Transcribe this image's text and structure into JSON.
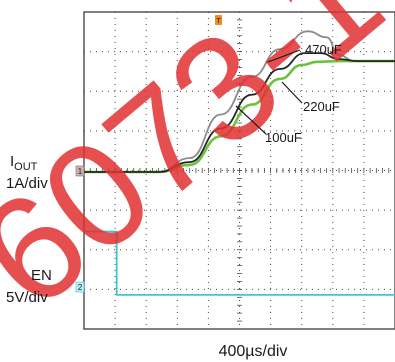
{
  "watermark": "6073-1",
  "labels": {
    "iout_main": "I",
    "iout_sub": "OUT",
    "iout_scale": "1A/div",
    "en_name": "EN",
    "en_scale": "5V/div",
    "time_scale": "400µs/div"
  },
  "markers": {
    "trigger": "T",
    "ch1": "1",
    "ch2": "2"
  },
  "colors": {
    "background": "#ffffff",
    "grid": "#4a4a4a",
    "trace_470uF": "#8c8c8c",
    "trace_220uF": "#262626",
    "trace_100uF": "#6cc23c",
    "en_trace": "#3ec6d2",
    "trigger_marker": "#f08a1e",
    "watermark": "#e23030"
  },
  "chart_data": {
    "type": "line",
    "title": "",
    "xlabel": "400µs/div",
    "ylabel": "",
    "divisions": {
      "x": 10,
      "y": 8
    },
    "series": [
      {
        "name": "470uF",
        "x_div": [
          0,
          2.4,
          3.4,
          4.4,
          5.4,
          6.3,
          7.2,
          7.8,
          8.2,
          8.7,
          9.5,
          10
        ],
        "y_div": [
          0,
          0,
          0.35,
          1.45,
          2.4,
          3.1,
          3.55,
          3.4,
          2.95,
          2.8,
          2.8,
          2.8
        ]
      },
      {
        "name": "220uF",
        "x_div": [
          0,
          2.4,
          3.4,
          4.4,
          5.4,
          6.3,
          7.1,
          7.6,
          8.2,
          8.8,
          9.5,
          10
        ],
        "y_div": [
          0,
          0,
          0.25,
          1.1,
          1.95,
          2.6,
          3.0,
          3.0,
          2.85,
          2.8,
          2.8,
          2.8
        ]
      },
      {
        "name": "100uF",
        "x_div": [
          0,
          2.4,
          3.4,
          4.4,
          5.4,
          6.3,
          7.0,
          7.5,
          8.2,
          8.8,
          9.5,
          10
        ],
        "y_div": [
          0,
          0,
          0.18,
          0.9,
          1.7,
          2.35,
          2.7,
          2.78,
          2.8,
          2.8,
          2.8,
          2.8
        ]
      },
      {
        "name": "EN",
        "x_div": [
          0,
          1.05,
          1.05,
          10
        ],
        "y_div": [
          1.45,
          1.45,
          -0.15,
          -0.15
        ]
      }
    ]
  }
}
